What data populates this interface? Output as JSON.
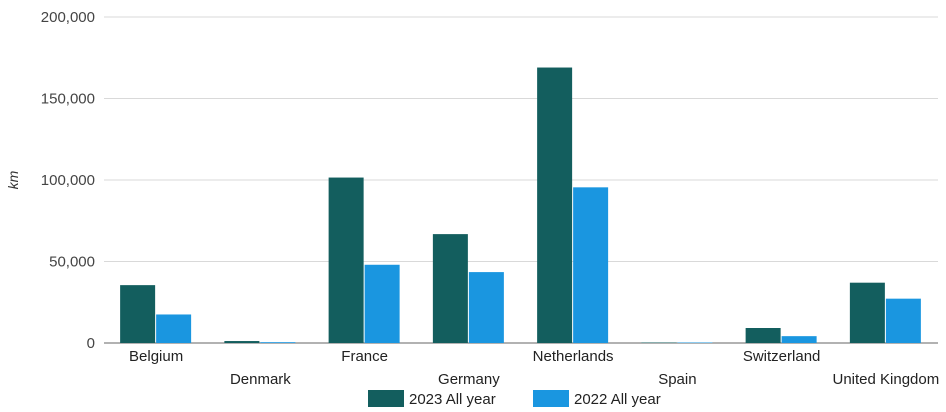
{
  "chart_data": {
    "type": "bar",
    "title": "",
    "xlabel": "",
    "ylabel": "km",
    "ylim": [
      0,
      200000
    ],
    "yticks": [
      0,
      50000,
      100000,
      150000,
      200000
    ],
    "grid": true,
    "legend_position": "bottom",
    "categories": [
      "Belgium",
      "Denmark",
      "France",
      "Germany",
      "Netherlands",
      "Spain",
      "Switzerland",
      "United Kingdom"
    ],
    "series": [
      {
        "name": "2023 All year",
        "color": "#135e5e",
        "values": [
          35500,
          1200,
          101500,
          66800,
          169000,
          300,
          9200,
          37000
        ]
      },
      {
        "name": "2022 All year",
        "color": "#1a96e0",
        "values": [
          17500,
          500,
          48000,
          43500,
          95500,
          300,
          4200,
          27200
        ]
      }
    ]
  }
}
